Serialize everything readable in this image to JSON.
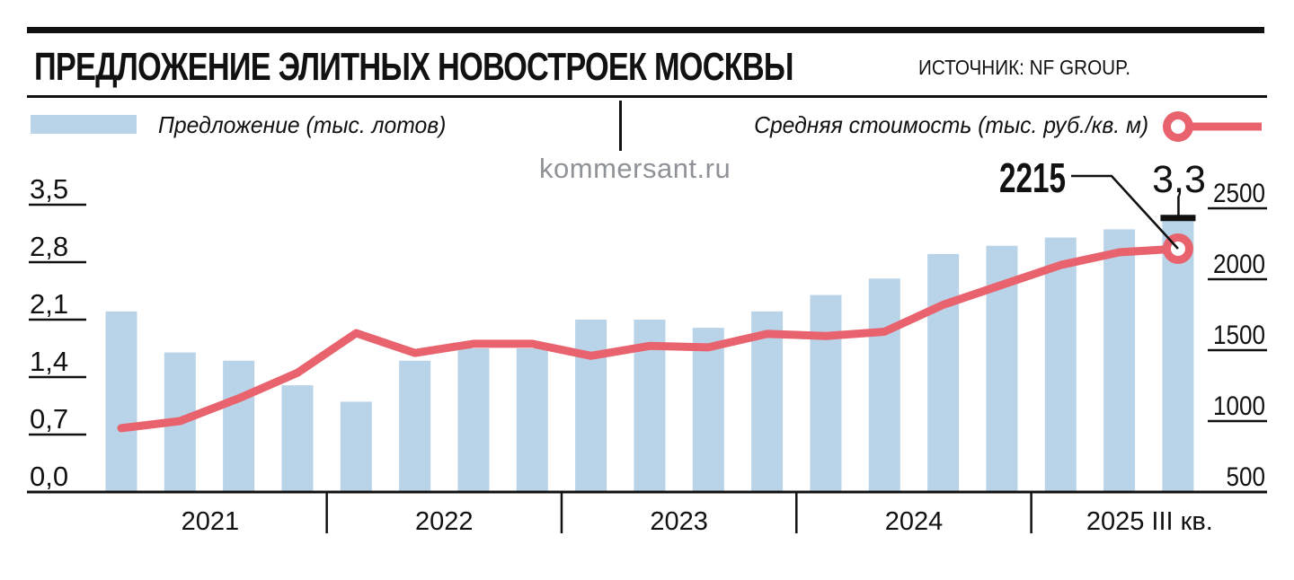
{
  "header": {
    "title": "ПРЕДЛОЖЕНИЕ ЭЛИТНЫХ НОВОСТРОЕК МОСКВЫ",
    "source": "ИСТОЧНИК: NF GROUP."
  },
  "legend": {
    "bars_label": "Предложение (тыс. лотов)",
    "line_label": "Средняя стоимость (тыс. руб./кв. м)"
  },
  "watermark": "kommersant.ru",
  "colors": {
    "bar_blue": "#b9d4e8",
    "line_red": "#e8636d",
    "ink": "#111111",
    "watermark_gray": "#8f9296"
  },
  "chart_data": {
    "type": "combo-bar-line",
    "title": "Предложение элитных новостроек Москвы",
    "groups": [
      {
        "label": "2021",
        "count": 4
      },
      {
        "label": "2022",
        "count": 4
      },
      {
        "label": "2023",
        "count": 4
      },
      {
        "label": "2024",
        "count": 4
      },
      {
        "label": "2025 III кв.",
        "count": 3
      }
    ],
    "categories": [
      "2021 Q1",
      "2021 Q2",
      "2021 Q3",
      "2021 Q4",
      "2022 Q1",
      "2022 Q2",
      "2022 Q3",
      "2022 Q4",
      "2023 Q1",
      "2023 Q2",
      "2023 Q3",
      "2023 Q4",
      "2024 Q1",
      "2024 Q2",
      "2024 Q3",
      "2024 Q4",
      "2025 Q1",
      "2025 Q2",
      "2025 Q3"
    ],
    "series": [
      {
        "name": "Предложение (тыс. лотов)",
        "type": "bar",
        "axis": "left",
        "values": [
          2.2,
          1.7,
          1.6,
          1.3,
          1.1,
          1.6,
          1.75,
          1.75,
          2.1,
          2.1,
          2.0,
          2.2,
          2.4,
          2.6,
          2.9,
          3.0,
          3.1,
          3.2,
          3.3
        ]
      },
      {
        "name": "Средняя стоимость (тыс. руб./кв. м)",
        "type": "line",
        "axis": "right",
        "values": [
          950,
          1000,
          1160,
          1340,
          1620,
          1480,
          1545,
          1545,
          1460,
          1530,
          1520,
          1615,
          1600,
          1630,
          1820,
          1960,
          2100,
          2190,
          2215
        ]
      }
    ],
    "left_axis": {
      "min": 0,
      "max": 3.5,
      "ticks": [
        {
          "label": "3,5",
          "value": 3.5
        },
        {
          "label": "2,8",
          "value": 2.8
        },
        {
          "label": "2,1",
          "value": 2.1
        },
        {
          "label": "1,4",
          "value": 1.4
        },
        {
          "label": "0,7",
          "value": 0.7
        },
        {
          "label": "0,0",
          "value": 0.0
        }
      ]
    },
    "right_axis": {
      "min": 500,
      "max": 2500,
      "ticks": [
        {
          "label": "2500",
          "value": 2500
        },
        {
          "label": "2000",
          "value": 2000
        },
        {
          "label": "1500",
          "value": 1500
        },
        {
          "label": "1000",
          "value": 1000
        },
        {
          "label": "500",
          "value": 500
        }
      ]
    },
    "annotations": {
      "last_price_label": "2215",
      "last_supply_label": "3,3"
    }
  }
}
